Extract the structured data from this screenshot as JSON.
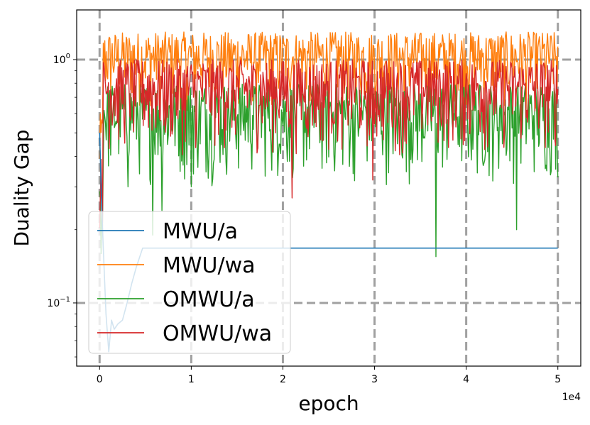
{
  "chart_data": {
    "type": "line",
    "title": "",
    "xlabel": "epoch",
    "ylabel": "Duality Gap",
    "x_scale_note": "1e4",
    "y_scale": "log",
    "xlim": [
      -2500,
      52500
    ],
    "ylim": [
      0.055,
      1.6
    ],
    "x_ticks": [
      0,
      10000,
      20000,
      30000,
      40000,
      50000
    ],
    "x_tick_labels": [
      "0",
      "1",
      "2",
      "3",
      "4",
      "5"
    ],
    "y_ticks": [
      0.1,
      1.0
    ],
    "y_tick_labels": [
      {
        "base": "10",
        "exp": "−1"
      },
      {
        "base": "10",
        "exp": "0"
      }
    ],
    "grid": true,
    "legend_position": "lower-left",
    "series": [
      {
        "name": "MWU/a",
        "color": "#1f77b4",
        "x": [
          0,
          200,
          400,
          700,
          1000,
          1300,
          1600,
          2000,
          2500,
          3000,
          3500,
          4000,
          4700,
          6000,
          10000,
          20000,
          30000,
          40000,
          50000
        ],
        "values": [
          0.5,
          0.27,
          0.17,
          0.09,
          0.063,
          0.085,
          0.078,
          0.082,
          0.085,
          0.1,
          0.12,
          0.14,
          0.168,
          0.168,
          0.168,
          0.168,
          0.168,
          0.168,
          0.168
        ]
      },
      {
        "name": "MWU/wa",
        "color": "#ff7f0e",
        "x_start": 0,
        "x_end": 50000,
        "noisy": true,
        "range": [
          0.6,
          1.3
        ]
      },
      {
        "name": "OMWU/a",
        "color": "#2ca02c",
        "x_start": 0,
        "x_end": 50000,
        "noisy": true,
        "range": [
          0.3,
          0.8
        ],
        "dips": [
          {
            "x": 5800,
            "y": 0.19
          },
          {
            "x": 6800,
            "y": 0.24
          },
          {
            "x": 3100,
            "y": 0.3
          },
          {
            "x": 36700,
            "y": 0.155
          },
          {
            "x": 45500,
            "y": 0.2
          },
          {
            "x": 10000,
            "y": 0.3
          }
        ]
      },
      {
        "name": "OMWU/wa",
        "color": "#d62728",
        "x_start": 0,
        "x_end": 50000,
        "noisy": true,
        "range": [
          0.4,
          1.0
        ],
        "dips": [
          {
            "x": 21000,
            "y": 0.27
          },
          {
            "x": 29800,
            "y": 0.32
          }
        ]
      }
    ]
  }
}
